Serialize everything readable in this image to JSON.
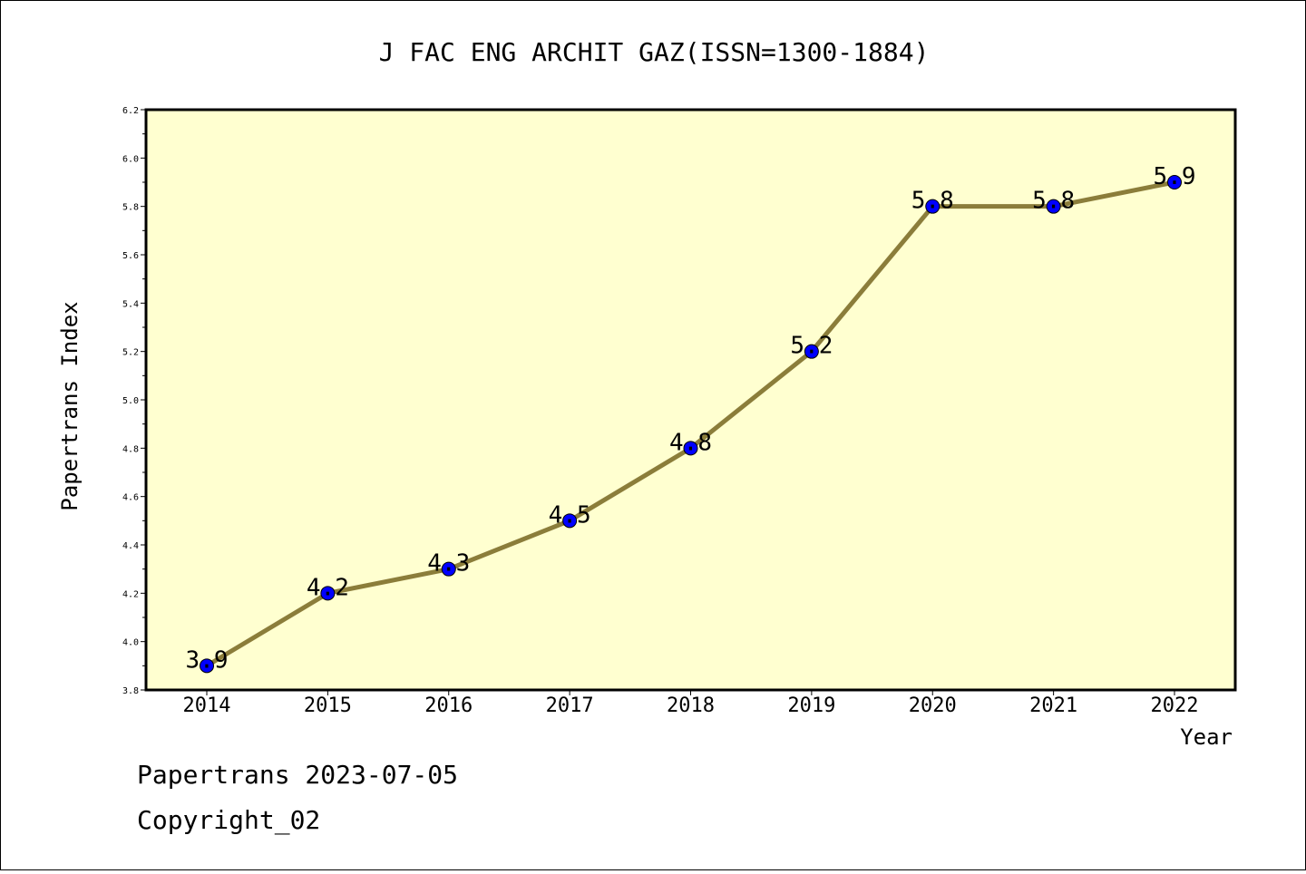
{
  "footer": {
    "line1": "Papertrans 2023-07-05",
    "line2": "Copyright_02"
  },
  "chart_data": {
    "type": "line",
    "title": "J FAC ENG ARCHIT GAZ(ISSN=1300-1884)",
    "xlabel": "Year",
    "ylabel": "Papertrans Index",
    "x": [
      "2014",
      "2015",
      "2016",
      "2017",
      "2018",
      "2019",
      "2020",
      "2021",
      "2022"
    ],
    "series": [
      {
        "values": [
          3.9,
          4.2,
          4.3,
          4.5,
          4.8,
          5.2,
          5.8,
          5.8,
          5.9
        ],
        "labels": [
          "3.9",
          "4.2",
          "4.3",
          "4.5",
          "4.8",
          "5.2",
          "5.8",
          "5.8",
          "5.9"
        ],
        "line_color": "#8b7d3a",
        "marker_color": "#0000ff"
      }
    ],
    "ylim": [
      3.8,
      6.2
    ],
    "yticks": [
      "3.8",
      "4.0",
      "4.2",
      "4.4",
      "4.6",
      "4.8",
      "5.0",
      "5.2",
      "5.4",
      "5.6",
      "5.8",
      "6.0",
      "6.2"
    ],
    "grid": false,
    "plot_background": "#ffffd0"
  }
}
